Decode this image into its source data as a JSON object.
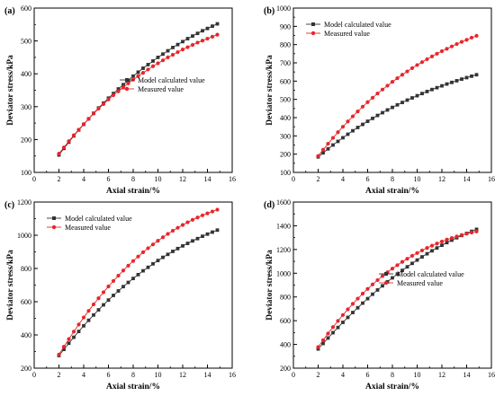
{
  "figure": {
    "colors": {
      "model": "#333333",
      "measured": "#e8262b",
      "axis": "#000000"
    }
  },
  "chart_data": [
    {
      "panel": "(a)",
      "type": "line",
      "xlabel": "Axial strain/%",
      "ylabel": "Deviator stress/kPa",
      "xlim": [
        0,
        16
      ],
      "ylim": [
        100,
        600
      ],
      "xticks": [
        "0",
        "2",
        "4",
        "6",
        "8",
        "10",
        "12",
        "14",
        "16"
      ],
      "yticks": [
        "100",
        "200",
        "300",
        "400",
        "500",
        "600"
      ],
      "grid": false,
      "legend_position": "center-right",
      "x": [
        2.0,
        2.4,
        2.8,
        3.2,
        3.6,
        4.0,
        4.4,
        4.8,
        5.2,
        5.6,
        6.0,
        6.4,
        6.8,
        7.2,
        7.6,
        8.0,
        8.4,
        8.8,
        9.2,
        9.6,
        10.0,
        10.4,
        10.8,
        11.2,
        11.6,
        12.0,
        12.4,
        12.8,
        13.2,
        13.6,
        14.0,
        14.4,
        14.8
      ],
      "series": [
        {
          "name": "Model calculated value",
          "marker": "square",
          "color": "#333333",
          "values": [
            153,
            173,
            192,
            211,
            229,
            246,
            263,
            280,
            296,
            311,
            326,
            340,
            354,
            367,
            380,
            393,
            405,
            417,
            428,
            439,
            450,
            460,
            470,
            480,
            489,
            498,
            507,
            515,
            523,
            531,
            538,
            545,
            552
          ]
        },
        {
          "name": "Measured value",
          "marker": "circle",
          "color": "#e8262b",
          "values": [
            157,
            176,
            195,
            213,
            230,
            247,
            263,
            279,
            294,
            308,
            322,
            335,
            347,
            359,
            371,
            382,
            393,
            403,
            413,
            423,
            432,
            441,
            450,
            458,
            466,
            474,
            481,
            488,
            495,
            501,
            507,
            513,
            519
          ]
        }
      ]
    },
    {
      "panel": "(b)",
      "type": "line",
      "xlabel": "Axial strain/%",
      "ylabel": "Deviator stress/kPa",
      "xlim": [
        0,
        16
      ],
      "ylim": [
        100,
        1000
      ],
      "xticks": [
        "0",
        "2",
        "4",
        "6",
        "8",
        "10",
        "12",
        "14",
        "16"
      ],
      "yticks": [
        "100",
        "200",
        "300",
        "400",
        "500",
        "600",
        "700",
        "800",
        "900",
        "1000"
      ],
      "grid": false,
      "legend_position": "top-left",
      "x": [
        2.0,
        2.4,
        2.8,
        3.2,
        3.6,
        4.0,
        4.4,
        4.8,
        5.2,
        5.6,
        6.0,
        6.4,
        6.8,
        7.2,
        7.6,
        8.0,
        8.4,
        8.8,
        9.2,
        9.6,
        10.0,
        10.4,
        10.8,
        11.2,
        11.6,
        12.0,
        12.4,
        12.8,
        13.2,
        13.6,
        14.0,
        14.4,
        14.8
      ],
      "series": [
        {
          "name": "Model calculated value",
          "marker": "square",
          "color": "#333333",
          "values": [
            185,
            207,
            229,
            250,
            270,
            290,
            309,
            328,
            346,
            363,
            380,
            396,
            412,
            427,
            442,
            456,
            470,
            483,
            496,
            508,
            520,
            532,
            543,
            554,
            564,
            574,
            584,
            593,
            602,
            611,
            619,
            627,
            635
          ]
        },
        {
          "name": "Measured value",
          "marker": "circle",
          "color": "#e8262b",
          "values": [
            190,
            224,
            257,
            289,
            320,
            350,
            379,
            407,
            434,
            460,
            485,
            509,
            532,
            554,
            575,
            596,
            616,
            635,
            653,
            671,
            688,
            704,
            720,
            735,
            750,
            764,
            777,
            790,
            803,
            815,
            826,
            838,
            848
          ]
        }
      ]
    },
    {
      "panel": "(c)",
      "type": "line",
      "xlabel": "Axial strain/%",
      "ylabel": "Deviator stress/kPa",
      "xlim": [
        0,
        16
      ],
      "ylim": [
        200,
        1200
      ],
      "xticks": [
        "0",
        "2",
        "4",
        "6",
        "8",
        "10",
        "12",
        "14",
        "16"
      ],
      "yticks": [
        "200",
        "400",
        "600",
        "800",
        "1000",
        "1200"
      ],
      "grid": false,
      "legend_position": "top-left",
      "x": [
        2.0,
        2.4,
        2.8,
        3.2,
        3.6,
        4.0,
        4.4,
        4.8,
        5.2,
        5.6,
        6.0,
        6.4,
        6.8,
        7.2,
        7.6,
        8.0,
        8.4,
        8.8,
        9.2,
        9.6,
        10.0,
        10.4,
        10.8,
        11.2,
        11.6,
        12.0,
        12.4,
        12.8,
        13.2,
        13.6,
        14.0,
        14.4,
        14.8
      ],
      "series": [
        {
          "name": "Model calculated value",
          "marker": "square",
          "color": "#333333",
          "values": [
            276,
            313,
            350,
            386,
            421,
            455,
            488,
            520,
            551,
            581,
            610,
            638,
            665,
            691,
            716,
            740,
            763,
            786,
            807,
            828,
            848,
            867,
            885,
            903,
            920,
            936,
            951,
            966,
            980,
            994,
            1007,
            1019,
            1031
          ]
        },
        {
          "name": "Measured value",
          "marker": "circle",
          "color": "#e8262b",
          "values": [
            282,
            329,
            375,
            420,
            463,
            505,
            545,
            584,
            621,
            657,
            692,
            725,
            757,
            788,
            817,
            845,
            872,
            898,
            922,
            945,
            967,
            988,
            1008,
            1027,
            1045,
            1062,
            1078,
            1093,
            1107,
            1120,
            1132,
            1143,
            1154
          ]
        }
      ]
    },
    {
      "panel": "(d)",
      "type": "line",
      "xlabel": "Axial strain/%",
      "ylabel": "Deviator stress/kPa",
      "xlim": [
        0,
        16
      ],
      "ylim": [
        200,
        1600
      ],
      "xticks": [
        "0",
        "2",
        "4",
        "6",
        "8",
        "10",
        "12",
        "14",
        "16"
      ],
      "yticks": [
        "200",
        "400",
        "600",
        "800",
        "1000",
        "1200",
        "1400",
        "1600"
      ],
      "grid": false,
      "legend_position": "center-right",
      "x": [
        2.0,
        2.4,
        2.8,
        3.2,
        3.6,
        4.0,
        4.4,
        4.8,
        5.2,
        5.6,
        6.0,
        6.4,
        6.8,
        7.2,
        7.6,
        8.0,
        8.4,
        8.8,
        9.2,
        9.6,
        10.0,
        10.4,
        10.8,
        11.2,
        11.6,
        12.0,
        12.4,
        12.8,
        13.2,
        13.6,
        14.0,
        14.4,
        14.8
      ],
      "series": [
        {
          "name": "Model calculated value",
          "marker": "square",
          "color": "#333333",
          "values": [
            362,
            408,
            454,
            499,
            543,
            586,
            628,
            669,
            709,
            748,
            786,
            823,
            859,
            894,
            928,
            961,
            993,
            1024,
            1054,
            1083,
            1111,
            1138,
            1164,
            1189,
            1213,
            1236,
            1258,
            1279,
            1299,
            1318,
            1336,
            1353,
            1370
          ]
        },
        {
          "name": "Measured value",
          "marker": "circle",
          "color": "#e8262b",
          "values": [
            378,
            436,
            492,
            546,
            598,
            648,
            696,
            742,
            786,
            828,
            868,
            906,
            942,
            976,
            1008,
            1039,
            1068,
            1096,
            1122,
            1147,
            1170,
            1192,
            1213,
            1232,
            1250,
            1267,
            1283,
            1297,
            1310,
            1322,
            1333,
            1343,
            1352
          ]
        }
      ]
    }
  ]
}
